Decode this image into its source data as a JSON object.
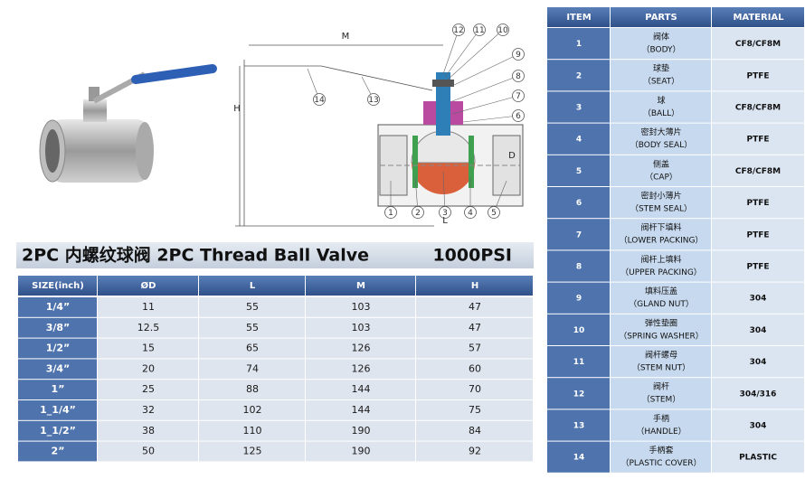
{
  "title": {
    "text": "2PC  内螺纹球阀 2PC Thread Ball Valve",
    "pressure": "1000PSI"
  },
  "diagram": {
    "callouts": [
      "1",
      "2",
      "3",
      "4",
      "5",
      "6",
      "7",
      "8",
      "9",
      "10",
      "11",
      "12",
      "13",
      "14"
    ],
    "dimensions": [
      "M",
      "H",
      "D",
      "L"
    ]
  },
  "size_table": {
    "header": [
      "SIZE(inch)",
      "ØD",
      "L",
      "M",
      "H"
    ],
    "rows": [
      [
        "1/4”",
        "11",
        "55",
        "103",
        "47"
      ],
      [
        "3/8”",
        "12.5",
        "55",
        "103",
        "47"
      ],
      [
        "1/2”",
        "15",
        "65",
        "126",
        "57"
      ],
      [
        "3/4”",
        "20",
        "74",
        "126",
        "60"
      ],
      [
        "1”",
        "25",
        "88",
        "144",
        "70"
      ],
      [
        "1_1/4”",
        "32",
        "102",
        "144",
        "75"
      ],
      [
        "1_1/2”",
        "38",
        "110",
        "190",
        "84"
      ],
      [
        "2”",
        "50",
        "125",
        "190",
        "92"
      ]
    ]
  },
  "parts_table": {
    "header": [
      "ITEM",
      "PARTS",
      "MATERIAL"
    ],
    "rows": [
      {
        "item": "1",
        "cn": "阀体",
        "en": "（BODY）",
        "material": "CF8/CF8M"
      },
      {
        "item": "2",
        "cn": "球垫",
        "en": "（SEAT）",
        "material": "PTFE"
      },
      {
        "item": "3",
        "cn": "球",
        "en": "（BALL）",
        "material": "CF8/CF8M"
      },
      {
        "item": "4",
        "cn": "密封大薄片",
        "en": "（BODY SEAL）",
        "material": "PTFE"
      },
      {
        "item": "5",
        "cn": "侧盖",
        "en": "（CAP）",
        "material": "CF8/CF8M"
      },
      {
        "item": "6",
        "cn": "密封小薄片",
        "en": "（STEM SEAL）",
        "material": "PTFE"
      },
      {
        "item": "7",
        "cn": "阀杆下填料",
        "en": "（LOWER PACKING）",
        "material": "PTFE"
      },
      {
        "item": "8",
        "cn": "阀杆上填料",
        "en": "（UPPER PACKING）",
        "material": "PTFE"
      },
      {
        "item": "9",
        "cn": "填料压盖",
        "en": "（GLAND NUT）",
        "material": "304"
      },
      {
        "item": "10",
        "cn": "弹性垫圈",
        "en": "（SPRING WASHER）",
        "material": "304"
      },
      {
        "item": "11",
        "cn": "阀杆螺母",
        "en": "（STEM NUT）",
        "material": "304"
      },
      {
        "item": "12",
        "cn": "阀杆",
        "en": "（STEM）",
        "material": "304/316"
      },
      {
        "item": "13",
        "cn": "手柄",
        "en": "（HANDLE）",
        "material": "304"
      },
      {
        "item": "14",
        "cn": "手柄套",
        "en": "（PLASTIC COVER）",
        "material": "PLASTIC"
      }
    ]
  }
}
